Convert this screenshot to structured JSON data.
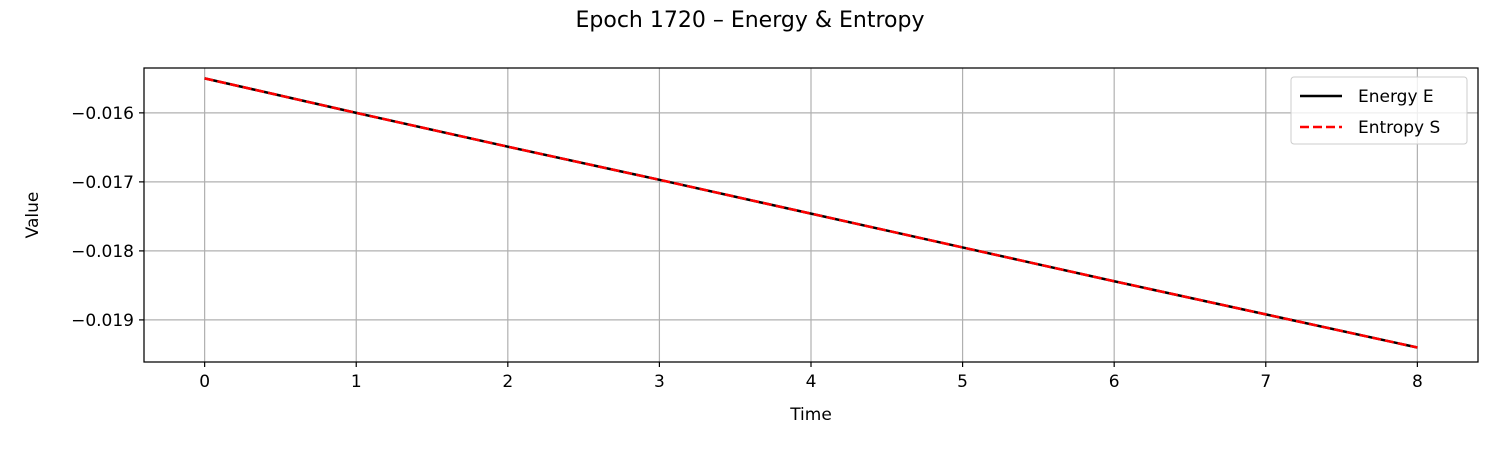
{
  "chart_data": {
    "type": "line",
    "title": "Epoch 1720 – Energy & Entropy",
    "xlabel": "Time",
    "ylabel": "Value",
    "xlim": [
      -0.4,
      8.4
    ],
    "ylim": [
      -0.01961,
      -0.01535
    ],
    "xticks": [
      0,
      1,
      2,
      3,
      4,
      5,
      6,
      7,
      8
    ],
    "xtick_labels": [
      "0",
      "1",
      "2",
      "3",
      "4",
      "5",
      "6",
      "7",
      "8"
    ],
    "yticks": [
      -0.016,
      -0.017,
      -0.018,
      -0.019
    ],
    "ytick_labels": [
      "−0.016",
      "−0.017",
      "−0.018",
      "−0.019"
    ],
    "grid": true,
    "legend_position": "top-right",
    "series": [
      {
        "name": "Energy E",
        "color": "#000000",
        "style": "solid",
        "x": [
          0,
          1,
          2,
          3,
          4,
          5,
          6,
          7,
          8
        ],
        "y": [
          -0.0155,
          -0.016,
          -0.01649,
          -0.01697,
          -0.01746,
          -0.01795,
          -0.01844,
          -0.01892,
          -0.0194
        ]
      },
      {
        "name": "Entropy S",
        "color": "#ff0000",
        "style": "dashed",
        "x": [
          0,
          1,
          2,
          3,
          4,
          5,
          6,
          7,
          8
        ],
        "y": [
          -0.0155,
          -0.016,
          -0.01649,
          -0.01697,
          -0.01746,
          -0.01795,
          -0.01844,
          -0.01892,
          -0.0194
        ]
      }
    ]
  }
}
